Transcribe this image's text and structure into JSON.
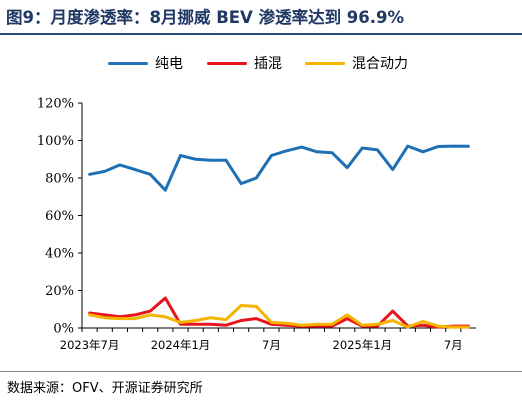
{
  "title": "图9：月度渗透率：8月挪威 BEV 渗透率达到 96.9%",
  "source": "数据来源：OFV、开源证券研究所",
  "chart_data": {
    "type": "line",
    "x": [
      "2023-07",
      "2023-08",
      "2023-09",
      "2023-10",
      "2023-11",
      "2023-12",
      "2024-01",
      "2024-02",
      "2024-03",
      "2024-04",
      "2024-05",
      "2024-06",
      "2024-07",
      "2024-08",
      "2024-09",
      "2024-10",
      "2024-11",
      "2024-12",
      "2025-01",
      "2025-02",
      "2025-03",
      "2025-04",
      "2025-05",
      "2025-06",
      "2025-07",
      "2025-08"
    ],
    "x_tick_labels": [
      "2023年7月",
      "2024年1月",
      "7月",
      "2025年1月",
      "7月"
    ],
    "x_tick_indices": [
      0,
      6,
      12,
      18,
      24
    ],
    "y_tick_labels": [
      "0%",
      "20%",
      "40%",
      "60%",
      "80%",
      "100%",
      "120%"
    ],
    "ylim": [
      0,
      120
    ],
    "legend_position": "top",
    "grid": false,
    "series": [
      {
        "name": "纯电",
        "color": "#1f6fb4",
        "values": [
          82,
          83.5,
          87,
          84.5,
          82,
          73.5,
          92,
          90,
          89.5,
          89.5,
          77,
          80,
          92,
          94.5,
          96.5,
          94,
          93.5,
          85.5,
          96,
          95,
          84.5,
          97,
          94,
          96.8,
          97,
          96.9
        ]
      },
      {
        "name": "插混",
        "color": "#e8141b",
        "values": [
          8,
          7,
          6,
          7,
          9,
          16,
          2,
          2,
          2,
          1.5,
          4,
          5,
          2,
          1.5,
          1,
          1,
          1,
          5,
          1,
          1,
          9,
          1,
          1.5,
          0.5,
          1,
          1
        ]
      },
      {
        "name": "混合动力",
        "color": "#f5b400",
        "values": [
          7,
          5.5,
          5,
          5,
          7,
          6,
          3,
          4,
          5.5,
          4.5,
          12,
          11.5,
          3,
          2.5,
          1.5,
          2,
          2,
          7,
          1.5,
          2,
          4,
          0.5,
          3.5,
          1,
          0.5,
          0.5
        ]
      }
    ]
  }
}
